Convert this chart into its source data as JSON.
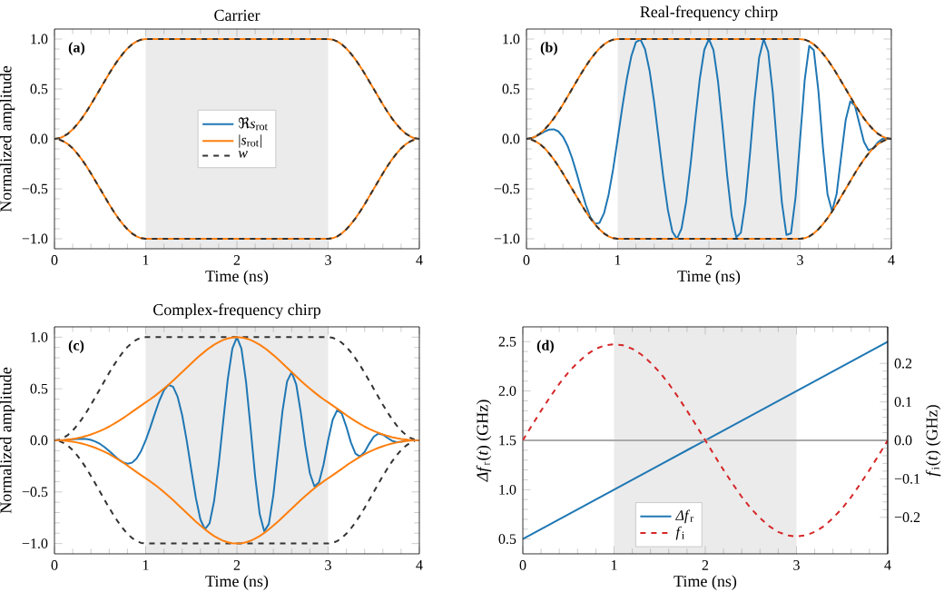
{
  "chart_data": [
    {
      "type": "line",
      "title": "Carrier",
      "xlabel": "Time (ns)",
      "ylabel": "Normalized amplitude",
      "annotations": [
        "(a)"
      ],
      "legend": "center",
      "xlim": [
        0,
        4
      ],
      "ylim": [
        -1.1,
        1.1
      ],
      "xticks": [
        0,
        1,
        2,
        3,
        4
      ],
      "yticks": [
        {
          "value": -1,
          "label": "−1.0"
        },
        {
          "value": -0.5,
          "label": "−0.5"
        },
        {
          "value": 0,
          "label": "0.0"
        },
        0.5,
        {
          "value": 1,
          "label": "1.0"
        }
      ],
      "bands": [
        {
          "axis": "x",
          "from": 1,
          "to": 3,
          "color": "#ebebeb"
        }
      ],
      "series": [
        {
          "name": "*ℜs*$_{rot}$",
          "color": "#1f77b4"
        },
        {
          "name": "|*s*$_{rot}$|",
          "color": "#ff7f0e",
          "x": [
            0,
            0.05,
            0.1,
            0.15,
            0.2,
            0.25,
            0.3,
            0.35,
            0.4,
            0.45,
            0.5,
            0.55,
            0.6,
            0.65,
            0.7,
            0.75,
            0.8,
            0.85,
            0.9,
            0.95,
            1,
            3,
            3.05,
            3.1,
            3.15,
            3.2,
            3.25,
            3.3,
            3.35,
            3.4,
            3.45,
            3.5,
            3.55,
            3.6,
            3.65,
            3.7,
            3.75,
            3.8,
            3.85,
            3.9,
            3.95,
            4
          ],
          "values": [
            0,
            0.006,
            0.025,
            0.054,
            0.095,
            0.146,
            0.206,
            0.273,
            0.345,
            0.422,
            0.5,
            0.578,
            0.655,
            0.727,
            0.794,
            0.854,
            0.905,
            0.946,
            0.976,
            0.994,
            1,
            1,
            0.994,
            0.976,
            0.946,
            0.905,
            0.854,
            0.794,
            0.727,
            0.655,
            0.578,
            0.5,
            0.422,
            0.345,
            0.273,
            0.206,
            0.146,
            0.095,
            0.054,
            0.025,
            0.006,
            0
          ]
        },
        {
          "color": "#ff7f0e",
          "x": [
            0.05,
            0.1,
            0.15,
            0.2,
            0.25,
            0.3,
            0.35,
            0.4,
            0.45,
            0.5,
            0.55,
            0.6,
            0.65,
            0.7,
            0.75,
            0.8,
            0.85,
            0.9,
            0.95,
            1,
            3,
            3.05,
            3.1,
            3.15,
            3.2,
            3.25,
            3.3,
            3.35,
            3.4,
            3.45,
            3.5,
            3.55,
            3.6,
            3.65,
            3.7,
            3.75,
            3.8,
            3.85,
            3.9,
            3.95
          ],
          "values": [
            -0.006,
            -0.025,
            -0.054,
            -0.095,
            -0.146,
            -0.206,
            -0.273,
            -0.345,
            -0.422,
            -0.5,
            -0.578,
            -0.655,
            -0.727,
            -0.794,
            -0.854,
            -0.905,
            -0.946,
            -0.976,
            -0.994,
            -1,
            -1,
            -0.994,
            -0.976,
            -0.946,
            -0.905,
            -0.854,
            -0.794,
            -0.727,
            -0.655,
            -0.578,
            -0.5,
            -0.422,
            -0.345,
            -0.273,
            -0.206,
            -0.146,
            -0.095,
            -0.054,
            -0.025,
            -0.006
          ]
        },
        {
          "name": "*w*",
          "color": "#333333",
          "line_style": "dashed",
          "x": [
            0,
            0.05,
            0.1,
            0.15,
            0.2,
            0.25,
            0.3,
            0.35,
            0.4,
            0.45,
            0.5,
            0.55,
            0.6,
            0.65,
            0.7,
            0.75,
            0.8,
            0.85,
            0.9,
            0.95,
            1,
            3,
            3.05,
            3.1,
            3.15,
            3.2,
            3.25,
            3.3,
            3.35,
            3.4,
            3.45,
            3.5,
            3.55,
            3.6,
            3.65,
            3.7,
            3.75,
            3.8,
            3.85,
            3.9,
            3.95,
            4
          ],
          "values": [
            0,
            0.006,
            0.025,
            0.054,
            0.095,
            0.146,
            0.206,
            0.273,
            0.345,
            0.422,
            0.5,
            0.578,
            0.655,
            0.727,
            0.794,
            0.854,
            0.905,
            0.946,
            0.976,
            0.994,
            1,
            1,
            0.994,
            0.976,
            0.946,
            0.905,
            0.854,
            0.794,
            0.727,
            0.655,
            0.578,
            0.5,
            0.422,
            0.345,
            0.273,
            0.206,
            0.146,
            0.095,
            0.054,
            0.025,
            0.006,
            0
          ]
        },
        {
          "color": "#333333",
          "line_style": "dashed",
          "x": [
            0.05,
            0.1,
            0.15,
            0.2,
            0.25,
            0.3,
            0.35,
            0.4,
            0.45,
            0.5,
            0.55,
            0.6,
            0.65,
            0.7,
            0.75,
            0.8,
            0.85,
            0.9,
            0.95,
            1,
            3,
            3.05,
            3.1,
            3.15,
            3.2,
            3.25,
            3.3,
            3.35,
            3.4,
            3.45,
            3.5,
            3.55,
            3.6,
            3.65,
            3.7,
            3.75,
            3.8,
            3.85,
            3.9,
            3.95
          ],
          "values": [
            -0.006,
            -0.025,
            -0.054,
            -0.095,
            -0.146,
            -0.206,
            -0.273,
            -0.345,
            -0.422,
            -0.5,
            -0.578,
            -0.655,
            -0.727,
            -0.794,
            -0.854,
            -0.905,
            -0.946,
            -0.976,
            -0.994,
            -1,
            -1,
            -0.994,
            -0.976,
            -0.946,
            -0.905,
            -0.854,
            -0.794,
            -0.727,
            -0.655,
            -0.578,
            -0.5,
            -0.422,
            -0.345,
            -0.273,
            -0.206,
            -0.146,
            -0.095,
            -0.054,
            -0.025,
            -0.006
          ]
        }
      ]
    },
    {
      "type": "line",
      "title": "Real-frequency chirp",
      "xlabel": "Time (ns)",
      "annotations": [
        "(b)"
      ],
      "xlim": [
        0,
        4
      ],
      "ylim": [
        -1.1,
        1.1
      ],
      "xticks": [
        0,
        1,
        2,
        3,
        4
      ],
      "yticks": [
        {
          "value": -1,
          "label": "−1.0"
        },
        {
          "value": -0.5,
          "label": "−0.5"
        },
        {
          "value": 0,
          "label": "0.0"
        },
        0.5,
        {
          "value": 1,
          "label": "1.0"
        }
      ],
      "bands": [
        {
          "axis": "x",
          "from": 1,
          "to": 3,
          "color": "#ebebeb"
        }
      ],
      "x": [
        0,
        0.05,
        0.1,
        0.15,
        0.2,
        0.25,
        0.3,
        0.35,
        0.4,
        0.45,
        0.5,
        0.55,
        0.6,
        0.65,
        0.7,
        0.75,
        0.8,
        0.85,
        0.9,
        0.95,
        1,
        1.05,
        1.1,
        1.15,
        1.2,
        1.25,
        1.3,
        1.35,
        1.4,
        1.45,
        1.5,
        1.55,
        1.6,
        1.65,
        1.7,
        1.75,
        1.8,
        1.85,
        1.9,
        1.95,
        2,
        2.05,
        2.1,
        2.15,
        2.2,
        2.25,
        2.3,
        2.35,
        2.4,
        2.45,
        2.5,
        2.55,
        2.6,
        2.65,
        2.7,
        2.75,
        2.8,
        2.85,
        2.9,
        2.95,
        3,
        3.05,
        3.1,
        3.15,
        3.2,
        3.25,
        3.3,
        3.35,
        3.4,
        3.45,
        3.5,
        3.55,
        3.6,
        3.65,
        3.7,
        3.75,
        3.8,
        3.85,
        3.9,
        3.95,
        4
      ],
      "series": [
        {
          "color": "#1f77b4",
          "values": [
            0,
            0.006,
            0.023,
            0.048,
            0.074,
            0.093,
            0.096,
            0.075,
            0.022,
            -0.068,
            -0.191,
            -0.342,
            -0.504,
            -0.659,
            -0.782,
            -0.849,
            -0.841,
            -0.745,
            -0.561,
            -0.304,
            0,
            0.313,
            0.6,
            0.829,
            0.969,
            0.995,
            0.898,
            0.682,
            0.368,
            -0.004,
            -0.383,
            -0.71,
            -0.93,
            -0.999,
            -0.898,
            -0.634,
            -0.249,
            0.191,
            0.6,
            0.893,
            1,
            0.889,
            0.575,
            0.122,
            -0.368,
            -0.773,
            -0.985,
            -0.94,
            -0.637,
            -0.153,
            0.383,
            0.811,
            0.998,
            0.875,
            0.468,
            -0.098,
            -0.637,
            -0.961,
            -0.946,
            -0.585,
            0,
            0.587,
            0.932,
            0.888,
            0.485,
            -0.084,
            -0.552,
            -0.722,
            -0.553,
            -0.177,
            0.191,
            0.376,
            0.335,
            0.153,
            -0.029,
            -0.113,
            -0.095,
            -0.037,
            0,
            0.004,
            0
          ]
        },
        {
          "color": "#ff7f0e",
          "x": [
            0,
            0.05,
            0.1,
            0.15,
            0.2,
            0.25,
            0.3,
            0.35,
            0.4,
            0.45,
            0.5,
            0.55,
            0.6,
            0.65,
            0.7,
            0.75,
            0.8,
            0.85,
            0.9,
            0.95,
            1,
            3,
            3.05,
            3.1,
            3.15,
            3.2,
            3.25,
            3.3,
            3.35,
            3.4,
            3.45,
            3.5,
            3.55,
            3.6,
            3.65,
            3.7,
            3.75,
            3.8,
            3.85,
            3.9,
            3.95,
            4
          ],
          "values": [
            0,
            0.006,
            0.025,
            0.054,
            0.095,
            0.146,
            0.206,
            0.273,
            0.345,
            0.422,
            0.5,
            0.578,
            0.655,
            0.727,
            0.794,
            0.854,
            0.905,
            0.946,
            0.976,
            0.994,
            1,
            1,
            0.994,
            0.976,
            0.946,
            0.905,
            0.854,
            0.794,
            0.727,
            0.655,
            0.578,
            0.5,
            0.422,
            0.345,
            0.273,
            0.206,
            0.146,
            0.095,
            0.054,
            0.025,
            0.006,
            0
          ]
        },
        {
          "color": "#ff7f0e",
          "x": [
            0.05,
            0.1,
            0.15,
            0.2,
            0.25,
            0.3,
            0.35,
            0.4,
            0.45,
            0.5,
            0.55,
            0.6,
            0.65,
            0.7,
            0.75,
            0.8,
            0.85,
            0.9,
            0.95,
            1,
            3,
            3.05,
            3.1,
            3.15,
            3.2,
            3.25,
            3.3,
            3.35,
            3.4,
            3.45,
            3.5,
            3.55,
            3.6,
            3.65,
            3.7,
            3.75,
            3.8,
            3.85,
            3.9,
            3.95
          ],
          "values": [
            -0.006,
            -0.025,
            -0.054,
            -0.095,
            -0.146,
            -0.206,
            -0.273,
            -0.345,
            -0.422,
            -0.5,
            -0.578,
            -0.655,
            -0.727,
            -0.794,
            -0.854,
            -0.905,
            -0.946,
            -0.976,
            -0.994,
            -1,
            -1,
            -0.994,
            -0.976,
            -0.946,
            -0.905,
            -0.854,
            -0.794,
            -0.727,
            -0.655,
            -0.578,
            -0.5,
            -0.422,
            -0.345,
            -0.273,
            -0.206,
            -0.146,
            -0.095,
            -0.054,
            -0.025,
            -0.006
          ]
        },
        {
          "color": "#333333",
          "line_style": "dashed",
          "x": [
            0,
            0.05,
            0.1,
            0.15,
            0.2,
            0.25,
            0.3,
            0.35,
            0.4,
            0.45,
            0.5,
            0.55,
            0.6,
            0.65,
            0.7,
            0.75,
            0.8,
            0.85,
            0.9,
            0.95,
            1,
            3,
            3.05,
            3.1,
            3.15,
            3.2,
            3.25,
            3.3,
            3.35,
            3.4,
            3.45,
            3.5,
            3.55,
            3.6,
            3.65,
            3.7,
            3.75,
            3.8,
            3.85,
            3.9,
            3.95,
            4
          ],
          "values": [
            0,
            0.006,
            0.025,
            0.054,
            0.095,
            0.146,
            0.206,
            0.273,
            0.345,
            0.422,
            0.5,
            0.578,
            0.655,
            0.727,
            0.794,
            0.854,
            0.905,
            0.946,
            0.976,
            0.994,
            1,
            1,
            0.994,
            0.976,
            0.946,
            0.905,
            0.854,
            0.794,
            0.727,
            0.655,
            0.578,
            0.5,
            0.422,
            0.345,
            0.273,
            0.206,
            0.146,
            0.095,
            0.054,
            0.025,
            0.006,
            0
          ]
        },
        {
          "color": "#333333",
          "line_style": "dashed",
          "x": [
            0.05,
            0.1,
            0.15,
            0.2,
            0.25,
            0.3,
            0.35,
            0.4,
            0.45,
            0.5,
            0.55,
            0.6,
            0.65,
            0.7,
            0.75,
            0.8,
            0.85,
            0.9,
            0.95,
            1,
            3,
            3.05,
            3.1,
            3.15,
            3.2,
            3.25,
            3.3,
            3.35,
            3.4,
            3.45,
            3.5,
            3.55,
            3.6,
            3.65,
            3.7,
            3.75,
            3.8,
            3.85,
            3.9,
            3.95
          ],
          "values": [
            -0.006,
            -0.025,
            -0.054,
            -0.095,
            -0.146,
            -0.206,
            -0.273,
            -0.345,
            -0.422,
            -0.5,
            -0.578,
            -0.655,
            -0.727,
            -0.794,
            -0.854,
            -0.905,
            -0.946,
            -0.976,
            -0.994,
            -1,
            -1,
            -0.994,
            -0.976,
            -0.946,
            -0.905,
            -0.854,
            -0.794,
            -0.727,
            -0.655,
            -0.578,
            -0.5,
            -0.422,
            -0.345,
            -0.273,
            -0.206,
            -0.146,
            -0.095,
            -0.054,
            -0.025,
            -0.006
          ]
        }
      ]
    },
    {
      "type": "line",
      "title": "Complex-frequency chirp",
      "xlabel": "Time (ns)",
      "ylabel": "Normalized amplitude",
      "annotations": [
        "(c)"
      ],
      "xlim": [
        0,
        4
      ],
      "ylim": [
        -1.1,
        1.1
      ],
      "xticks": [
        0,
        1,
        2,
        3,
        4
      ],
      "yticks": [
        {
          "value": -1,
          "label": "−1.0"
        },
        {
          "value": -0.5,
          "label": "−0.5"
        },
        {
          "value": 0,
          "label": "0.0"
        },
        0.5,
        {
          "value": 1,
          "label": "1.0"
        }
      ],
      "bands": [
        {
          "axis": "x",
          "from": 1,
          "to": 3,
          "color": "#ebebeb"
        }
      ],
      "x": [
        0,
        0.05,
        0.1,
        0.15,
        0.2,
        0.25,
        0.3,
        0.35,
        0.4,
        0.45,
        0.5,
        0.55,
        0.6,
        0.65,
        0.7,
        0.75,
        0.8,
        0.85,
        0.9,
        0.95,
        1,
        1.05,
        1.1,
        1.15,
        1.2,
        1.25,
        1.3,
        1.35,
        1.4,
        1.45,
        1.5,
        1.55,
        1.6,
        1.65,
        1.7,
        1.75,
        1.8,
        1.85,
        1.9,
        1.95,
        2,
        2.05,
        2.1,
        2.15,
        2.2,
        2.25,
        2.3,
        2.35,
        2.4,
        2.45,
        2.5,
        2.55,
        2.6,
        2.65,
        2.7,
        2.75,
        2.8,
        2.85,
        2.9,
        2.95,
        3,
        3.05,
        3.1,
        3.15,
        3.2,
        3.25,
        3.3,
        3.35,
        3.4,
        3.45,
        3.5,
        3.55,
        3.6,
        3.65,
        3.7,
        3.75,
        3.8,
        3.85,
        3.9,
        3.95,
        4
      ],
      "series": [
        {
          "color": "#333333",
          "line_style": "dashed",
          "x": [
            0,
            0.05,
            0.1,
            0.15,
            0.2,
            0.25,
            0.3,
            0.35,
            0.4,
            0.45,
            0.5,
            0.55,
            0.6,
            0.65,
            0.7,
            0.75,
            0.8,
            0.85,
            0.9,
            0.95,
            1,
            3,
            3.05,
            3.1,
            3.15,
            3.2,
            3.25,
            3.3,
            3.35,
            3.4,
            3.45,
            3.5,
            3.55,
            3.6,
            3.65,
            3.7,
            3.75,
            3.8,
            3.85,
            3.9,
            3.95,
            4
          ],
          "values": [
            0,
            0.006,
            0.025,
            0.054,
            0.095,
            0.146,
            0.206,
            0.273,
            0.345,
            0.422,
            0.5,
            0.578,
            0.655,
            0.727,
            0.794,
            0.854,
            0.905,
            0.946,
            0.976,
            0.994,
            1,
            1,
            0.994,
            0.976,
            0.946,
            0.905,
            0.854,
            0.794,
            0.727,
            0.655,
            0.578,
            0.5,
            0.422,
            0.345,
            0.273,
            0.206,
            0.146,
            0.095,
            0.054,
            0.025,
            0.006,
            0
          ]
        },
        {
          "color": "#333333",
          "line_style": "dashed",
          "x": [
            0.05,
            0.1,
            0.15,
            0.2,
            0.25,
            0.3,
            0.35,
            0.4,
            0.45,
            0.5,
            0.55,
            0.6,
            0.65,
            0.7,
            0.75,
            0.8,
            0.85,
            0.9,
            0.95,
            1,
            3,
            3.05,
            3.1,
            3.15,
            3.2,
            3.25,
            3.3,
            3.35,
            3.4,
            3.45,
            3.5,
            3.55,
            3.6,
            3.65,
            3.7,
            3.75,
            3.8,
            3.85,
            3.9,
            3.95
          ],
          "values": [
            -0.006,
            -0.025,
            -0.054,
            -0.095,
            -0.146,
            -0.206,
            -0.273,
            -0.345,
            -0.422,
            -0.5,
            -0.578,
            -0.655,
            -0.727,
            -0.794,
            -0.854,
            -0.905,
            -0.946,
            -0.976,
            -0.994,
            -1,
            -1,
            -0.994,
            -0.976,
            -0.946,
            -0.905,
            -0.854,
            -0.794,
            -0.727,
            -0.655,
            -0.578,
            -0.5,
            -0.422,
            -0.345,
            -0.273,
            -0.206,
            -0.146,
            -0.095,
            -0.054,
            -0.025,
            -0.006
          ]
        },
        {
          "color": "#1f77b4",
          "values": [
            null,
            null,
            0.003,
            0.007,
            0.01,
            0.014,
            0.015,
            0.012,
            0.004,
            -0.012,
            -0.035,
            -0.066,
            -0.103,
            -0.144,
            -0.183,
            -0.213,
            -0.227,
            -0.217,
            -0.177,
            -0.103,
            0,
            0.124,
            0.258,
            0.385,
            0.485,
            0.537,
            0.52,
            0.423,
            0.244,
            -0.003,
            -0.286,
            -0.558,
            -0.768,
            -0.862,
            -0.805,
            -0.588,
            -0.237,
            0.186,
            0.593,
            0.89,
            1,
            0.887,
            0.568,
            0.119,
            -0.351,
            -0.716,
            -0.883,
            -0.811,
            -0.527,
            -0.12,
            0.286,
            0.571,
            0.661,
            0.543,
            0.271,
            -0.053,
            -0.319,
            -0.447,
            -0.407,
            -0.233,
            0,
            0.2,
            0.294,
            0.259,
            0.131,
            -0.021,
            -0.129,
            -0.157,
            -0.113,
            -0.034,
            0.035,
            0.065,
            0.055,
            0.024,
            -0.004,
            -0.017,
            -0.014,
            -0.005,
            null,
            null,
            null
          ]
        },
        {
          "color": "#ff7f0e",
          "values": [
            0,
            0.001,
            0.003,
            0.008,
            0.014,
            0.021,
            0.031,
            0.043,
            0.057,
            0.073,
            0.091,
            0.111,
            0.134,
            0.159,
            0.186,
            0.214,
            0.244,
            0.276,
            0.307,
            0.338,
            0.368,
            0.398,
            0.43,
            0.465,
            0.501,
            0.539,
            0.579,
            0.62,
            0.662,
            0.704,
            0.746,
            0.787,
            0.826,
            0.863,
            0.897,
            0.927,
            0.952,
            0.973,
            0.988,
            0.997,
            1,
            0.997,
            0.988,
            0.973,
            0.952,
            0.927,
            0.897,
            0.863,
            0.826,
            0.787,
            0.746,
            0.704,
            0.662,
            0.62,
            0.579,
            0.539,
            0.501,
            0.465,
            0.43,
            0.398,
            0.368,
            0.338,
            0.307,
            0.276,
            0.244,
            0.214,
            0.186,
            0.159,
            0.134,
            0.111,
            0.091,
            0.073,
            0.057,
            0.043,
            0.031,
            0.021,
            0.014,
            0.008,
            0.003,
            0.001,
            0
          ]
        },
        {
          "color": "#ff7f0e",
          "values": [
            null,
            -0.001,
            -0.003,
            -0.008,
            -0.014,
            -0.021,
            -0.031,
            -0.043,
            -0.057,
            -0.073,
            -0.091,
            -0.111,
            -0.134,
            -0.159,
            -0.186,
            -0.214,
            -0.244,
            -0.276,
            -0.307,
            -0.338,
            -0.368,
            -0.398,
            -0.43,
            -0.465,
            -0.501,
            -0.539,
            -0.579,
            -0.62,
            -0.662,
            -0.704,
            -0.746,
            -0.787,
            -0.826,
            -0.863,
            -0.897,
            -0.927,
            -0.952,
            -0.973,
            -0.988,
            -0.997,
            -1,
            -0.997,
            -0.988,
            -0.973,
            -0.952,
            -0.927,
            -0.897,
            -0.863,
            -0.826,
            -0.787,
            -0.746,
            -0.704,
            -0.662,
            -0.62,
            -0.579,
            -0.539,
            -0.501,
            -0.465,
            -0.43,
            -0.398,
            -0.368,
            -0.338,
            -0.307,
            -0.276,
            -0.244,
            -0.214,
            -0.186,
            -0.159,
            -0.134,
            -0.111,
            -0.091,
            -0.073,
            -0.057,
            -0.043,
            -0.031,
            -0.021,
            -0.014,
            -0.008,
            -0.003,
            -0.001,
            null
          ]
        }
      ]
    },
    {
      "type": "line",
      "xlabel": "Time (ns)",
      "ylabel": "*Δf*$_{r}$(*t*) (GHz)",
      "y2label": "*f*$_{i}$(*t*) (GHz)",
      "annotations": [
        "(d)"
      ],
      "legend": "bottom",
      "xlim": [
        0,
        4
      ],
      "ylim": [
        0.35,
        2.65
      ],
      "y2lim": [
        -0.295,
        0.295
      ],
      "xticks": [
        0,
        1,
        2,
        3,
        4
      ],
      "yticks": [
        0.5,
        {
          "value": 1,
          "label": "1.0"
        },
        1.5,
        {
          "value": 2,
          "label": "2.0"
        },
        2.5
      ],
      "y2ticks": [
        {
          "value": -0.2,
          "label": "−0.2"
        },
        {
          "value": -0.1,
          "label": "−0.1"
        },
        {
          "value": 0,
          "label": "0.0"
        },
        0.1,
        0.2
      ],
      "bands": [
        {
          "axis": "x",
          "from": 1,
          "to": 3,
          "color": "#ebebeb"
        }
      ],
      "ref_lines": [
        {
          "axis": "y2",
          "value": 0,
          "color": "#aaaaaa"
        }
      ],
      "series": [
        {
          "name": "*Δf*$_{r}$",
          "color": "#1f77b4",
          "x": [
            0,
            4
          ],
          "values": [
            0.5,
            2.5
          ]
        },
        {
          "name": "*f*$_{i}$",
          "color": "#d62728",
          "line_style": "dashed",
          "axis": "y2",
          "x": [
            0,
            0.1,
            0.2,
            0.3,
            0.4,
            0.5,
            0.6,
            0.7,
            0.8,
            0.9,
            1,
            1.1,
            1.2,
            1.3,
            1.4,
            1.5,
            1.6,
            1.7,
            1.8,
            1.9,
            2,
            2.1,
            2.2,
            2.3,
            2.4,
            2.5,
            2.6,
            2.7,
            2.8,
            2.9,
            3,
            3.1,
            3.2,
            3.3,
            3.4,
            3.5,
            3.6,
            3.7,
            3.8,
            3.9,
            4
          ],
          "values": [
            0,
            0.039,
            0.077,
            0.113,
            0.147,
            0.177,
            0.202,
            0.223,
            0.238,
            0.247,
            0.25,
            0.247,
            0.238,
            0.223,
            0.202,
            0.177,
            0.147,
            0.113,
            0.077,
            0.039,
            0,
            -0.039,
            -0.077,
            -0.113,
            -0.147,
            -0.177,
            -0.202,
            -0.223,
            -0.238,
            -0.247,
            -0.25,
            -0.247,
            -0.238,
            -0.223,
            -0.202,
            -0.177,
            -0.147,
            -0.113,
            -0.077,
            -0.039,
            0
          ]
        }
      ]
    }
  ]
}
